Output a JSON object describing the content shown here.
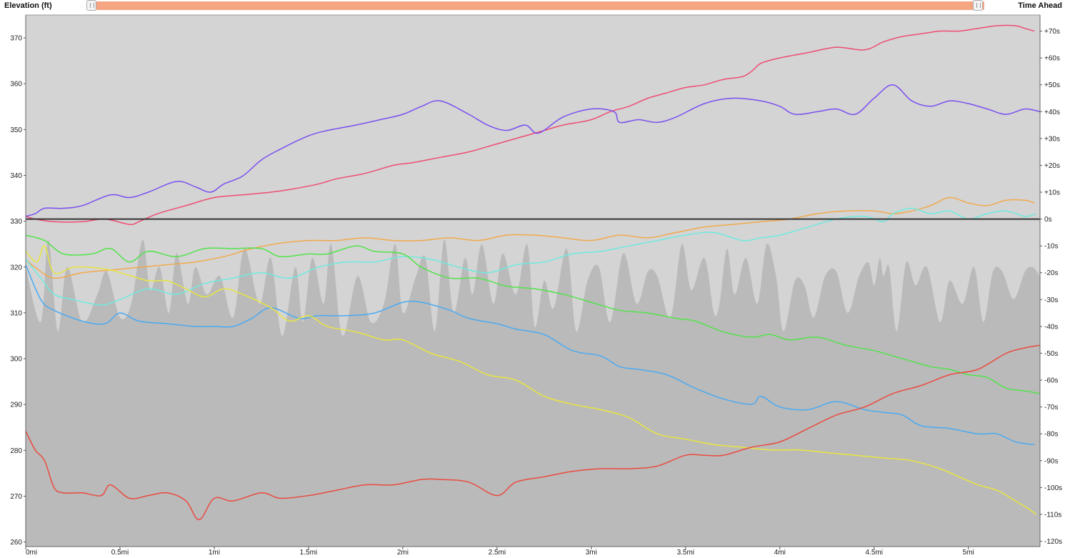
{
  "header": {
    "left_title": "Elevation (ft)",
    "right_title": "Time Ahead"
  },
  "slider": {
    "range": [
      0,
      1
    ]
  },
  "colors": {
    "plot_background": "#d4d4d4",
    "elevation_fill": "#bababa",
    "zero_line": "#333333",
    "series": [
      "#ee4d72",
      "#7a4ff0",
      "#f2a94c",
      "#6eeadf",
      "#52e34a",
      "#4aaaf2",
      "#e8e63e",
      "#ea4a3e"
    ]
  },
  "chart_data": {
    "type": "line",
    "xlim": [
      0,
      5.38
    ],
    "ylim_left": [
      259,
      375
    ],
    "ylim_right": [
      -122,
      76
    ],
    "x_ticks": [
      {
        "v": 0,
        "label": "0mi"
      },
      {
        "v": 0.5,
        "label": "0.5mi"
      },
      {
        "v": 1,
        "label": "1mi"
      },
      {
        "v": 1.5,
        "label": "1.5mi"
      },
      {
        "v": 2,
        "label": "2mi"
      },
      {
        "v": 2.5,
        "label": "2.5mi"
      },
      {
        "v": 3,
        "label": "3mi"
      },
      {
        "v": 3.5,
        "label": "3.5mi"
      },
      {
        "v": 4,
        "label": "4mi"
      },
      {
        "v": 4.5,
        "label": "4.5mi"
      },
      {
        "v": 5,
        "label": "5mi"
      }
    ],
    "left_ticks": [
      {
        "v": 260,
        "label": "260"
      },
      {
        "v": 270,
        "label": "270"
      },
      {
        "v": 280,
        "label": "280"
      },
      {
        "v": 290,
        "label": "290"
      },
      {
        "v": 300,
        "label": "300"
      },
      {
        "v": 310,
        "label": "310"
      },
      {
        "v": 320,
        "label": "320"
      },
      {
        "v": 330,
        "label": "330"
      },
      {
        "v": 340,
        "label": "340"
      },
      {
        "v": 350,
        "label": "350"
      },
      {
        "v": 360,
        "label": "360"
      },
      {
        "v": 370,
        "label": "370"
      }
    ],
    "right_ticks": [
      {
        "v": -120,
        "label": "-120s"
      },
      {
        "v": -110,
        "label": "-110s"
      },
      {
        "v": -100,
        "label": "-100s"
      },
      {
        "v": -90,
        "label": "-90s"
      },
      {
        "v": -80,
        "label": "-80s"
      },
      {
        "v": -70,
        "label": "-70s"
      },
      {
        "v": -60,
        "label": "-60s"
      },
      {
        "v": -50,
        "label": "-50s"
      },
      {
        "v": -40,
        "label": "-40s"
      },
      {
        "v": -30,
        "label": "-30s"
      },
      {
        "v": -20,
        "label": "-20s"
      },
      {
        "v": -10,
        "label": "-10s"
      },
      {
        "v": 0,
        "label": "0s"
      },
      {
        "v": 10,
        "label": "+10s"
      },
      {
        "v": 20,
        "label": "+20s"
      },
      {
        "v": 30,
        "label": "+30s"
      },
      {
        "v": 40,
        "label": "+40s"
      },
      {
        "v": 50,
        "label": "+50s"
      },
      {
        "v": 60,
        "label": "+60s"
      },
      {
        "v": 70,
        "label": "+70s"
      }
    ],
    "elevation": {
      "x": [
        0,
        0.08,
        0.12,
        0.17,
        0.22,
        0.3,
        0.38,
        0.43,
        0.5,
        0.56,
        0.62,
        0.66,
        0.71,
        0.76,
        0.8,
        0.86,
        0.9,
        0.96,
        1.03,
        1.1,
        1.16,
        1.24,
        1.3,
        1.36,
        1.43,
        1.47,
        1.52,
        1.58,
        1.62,
        1.68,
        1.76,
        1.83,
        1.9,
        1.96,
        2.0,
        2.07,
        2.12,
        2.17,
        2.22,
        2.27,
        2.33,
        2.37,
        2.42,
        2.48,
        2.53,
        2.6,
        2.66,
        2.7,
        2.75,
        2.8,
        2.87,
        2.92,
        2.98,
        3.04,
        3.1,
        3.17,
        3.24,
        3.3,
        3.35,
        3.42,
        3.48,
        3.53,
        3.6,
        3.65,
        3.68,
        3.72,
        3.76,
        3.82,
        3.88,
        3.93,
        3.98,
        4.02,
        4.08,
        4.13,
        4.18,
        4.24,
        4.3,
        4.36,
        4.42,
        4.47,
        4.5,
        4.53,
        4.55,
        4.58,
        4.62,
        4.67,
        4.72,
        4.78,
        4.85,
        4.9,
        4.97,
        5.03,
        5.08,
        5.13,
        5.18,
        5.24,
        5.3,
        5.34,
        5.38
      ],
      "y": [
        320,
        308,
        326,
        306,
        320,
        308,
        314,
        319,
        309,
        312,
        326,
        315,
        320,
        310,
        323,
        312,
        320,
        314,
        318,
        309,
        324,
        312,
        322,
        305,
        320,
        308,
        322,
        312,
        325,
        305,
        318,
        308,
        312,
        325,
        310,
        318,
        322,
        306,
        326,
        310,
        322,
        314,
        325,
        312,
        323,
        314,
        325,
        307,
        317,
        311,
        324,
        306,
        317,
        320,
        308,
        323,
        312,
        319,
        318,
        309,
        325,
        315,
        322,
        310,
        312,
        324,
        314,
        322,
        312,
        325,
        318,
        306,
        317,
        316,
        309,
        318,
        319,
        310,
        318,
        321,
        316,
        322,
        318,
        320,
        306,
        321,
        316,
        320,
        308,
        317,
        312,
        320,
        308,
        319,
        319,
        313,
        319,
        320,
        318
      ]
    },
    "series": [
      {
        "color": "#ee4d72",
        "x": [
          0,
          0.05,
          0.15,
          0.3,
          0.42,
          0.55,
          0.6,
          0.7,
          0.85,
          1.0,
          1.15,
          1.3,
          1.4,
          1.55,
          1.65,
          1.8,
          1.95,
          2.05,
          2.2,
          2.35,
          2.5,
          2.65,
          2.75,
          2.85,
          3.0,
          3.1,
          3.2,
          3.3,
          3.4,
          3.5,
          3.6,
          3.7,
          3.8,
          3.85,
          3.9,
          4.0,
          4.15,
          4.3,
          4.45,
          4.55,
          4.65,
          4.75,
          4.85,
          4.95,
          5.05,
          5.15,
          5.25,
          5.3,
          5.35
        ],
        "y": [
          1,
          0,
          -1,
          -1,
          0,
          -2,
          -1,
          2,
          5,
          8,
          9,
          10,
          11,
          13,
          15,
          17,
          20,
          21,
          23,
          25,
          28,
          31,
          33,
          35,
          37,
          40,
          42,
          45,
          47,
          49,
          50,
          52,
          53,
          55,
          58,
          60,
          62,
          64,
          63,
          66,
          68,
          69,
          70,
          70,
          71,
          72,
          72,
          71,
          70
        ]
      },
      {
        "color": "#7a4ff0",
        "x": [
          0,
          0.05,
          0.1,
          0.2,
          0.3,
          0.45,
          0.55,
          0.65,
          0.8,
          0.9,
          0.98,
          1.05,
          1.15,
          1.25,
          1.35,
          1.5,
          1.6,
          1.75,
          1.88,
          2.0,
          2.1,
          2.2,
          2.35,
          2.45,
          2.55,
          2.65,
          2.72,
          2.85,
          3.0,
          3.12,
          3.15,
          3.25,
          3.35,
          3.45,
          3.6,
          3.75,
          3.9,
          4.0,
          4.08,
          4.2,
          4.3,
          4.4,
          4.5,
          4.6,
          4.7,
          4.8,
          4.9,
          5.0,
          5.1,
          5.2,
          5.3,
          5.38
        ],
        "y": [
          1,
          2,
          4,
          4,
          5,
          9,
          8,
          10,
          14,
          12,
          10,
          13,
          16,
          22,
          26,
          31,
          33,
          35,
          37,
          39,
          42,
          44,
          39,
          35,
          33,
          35,
          32,
          38,
          41,
          40,
          36,
          37,
          36,
          38,
          43,
          45,
          44,
          42,
          39,
          40,
          41,
          39,
          45,
          50,
          44,
          42,
          44,
          43,
          41,
          39,
          41,
          40
        ]
      },
      {
        "color": "#f2a94c",
        "x": [
          0,
          0.05,
          0.15,
          0.3,
          0.45,
          0.6,
          0.75,
          0.9,
          1.05,
          1.2,
          1.35,
          1.5,
          1.65,
          1.8,
          1.95,
          2.1,
          2.25,
          2.4,
          2.55,
          2.7,
          2.85,
          3.0,
          3.15,
          3.3,
          3.45,
          3.6,
          3.75,
          3.9,
          4.05,
          4.2,
          4.35,
          4.5,
          4.6,
          4.7,
          4.8,
          4.9,
          5.0,
          5.1,
          5.2,
          5.3,
          5.35
        ],
        "y": [
          -15,
          -18,
          -22,
          -20,
          -19,
          -18,
          -17,
          -16,
          -14,
          -11,
          -9,
          -8,
          -8,
          -7,
          -8,
          -8,
          -7,
          -8,
          -6,
          -6,
          -7,
          -8,
          -6,
          -7,
          -5,
          -3,
          -2,
          -1,
          0,
          2,
          3,
          3,
          2,
          3,
          5,
          8,
          6,
          5,
          7,
          7,
          6
        ]
      },
      {
        "color": "#6eeadf",
        "x": [
          0,
          0.08,
          0.15,
          0.25,
          0.4,
          0.5,
          0.65,
          0.8,
          0.95,
          1.1,
          1.25,
          1.4,
          1.55,
          1.7,
          1.85,
          2.0,
          2.15,
          2.3,
          2.45,
          2.6,
          2.75,
          2.9,
          3.05,
          3.2,
          3.35,
          3.5,
          3.65,
          3.8,
          3.9,
          4.0,
          4.15,
          4.3,
          4.45,
          4.55,
          4.6,
          4.7,
          4.8,
          4.9,
          5.0,
          5.1,
          5.2,
          5.3,
          5.36
        ],
        "y": [
          -15,
          -22,
          -28,
          -30,
          -32,
          -30,
          -26,
          -28,
          -24,
          -22,
          -20,
          -22,
          -18,
          -16,
          -16,
          -14,
          -15,
          -18,
          -20,
          -17,
          -16,
          -13,
          -12,
          -10,
          -8,
          -6,
          -5,
          -8,
          -7,
          -6,
          -3,
          0,
          1,
          -1,
          2,
          4,
          2,
          3,
          0,
          2,
          3,
          1,
          2
        ]
      },
      {
        "color": "#52e34a",
        "x": [
          0,
          0.1,
          0.2,
          0.35,
          0.45,
          0.55,
          0.65,
          0.8,
          0.95,
          1.1,
          1.25,
          1.35,
          1.5,
          1.6,
          1.75,
          1.85,
          2.0,
          2.1,
          2.25,
          2.4,
          2.55,
          2.7,
          2.85,
          3.0,
          3.15,
          3.3,
          3.45,
          3.55,
          3.7,
          3.85,
          3.95,
          4.05,
          4.2,
          4.35,
          4.5,
          4.6,
          4.7,
          4.8,
          4.9,
          5.0,
          5.1,
          5.2,
          5.3,
          5.38
        ],
        "y": [
          -6,
          -8,
          -13,
          -13,
          -11,
          -16,
          -12,
          -14,
          -11,
          -11,
          -11,
          -14,
          -13,
          -13,
          -10,
          -12,
          -13,
          -18,
          -22,
          -22,
          -25,
          -26,
          -28,
          -31,
          -34,
          -35,
          -37,
          -38,
          -42,
          -44,
          -43,
          -45,
          -44,
          -47,
          -49,
          -51,
          -53,
          -55,
          -56,
          -58,
          -59,
          -63,
          -64,
          -65
        ]
      },
      {
        "color": "#4aaaf2",
        "x": [
          0,
          0.08,
          0.15,
          0.3,
          0.42,
          0.5,
          0.6,
          0.75,
          0.9,
          1.0,
          1.1,
          1.2,
          1.3,
          1.45,
          1.55,
          1.7,
          1.85,
          2.0,
          2.1,
          2.25,
          2.35,
          2.5,
          2.6,
          2.75,
          2.9,
          3.05,
          3.15,
          3.25,
          3.4,
          3.55,
          3.7,
          3.85,
          3.9,
          4.0,
          4.15,
          4.3,
          4.45,
          4.55,
          4.65,
          4.75,
          4.9,
          5.05,
          5.15,
          5.25,
          5.35
        ],
        "y": [
          -17,
          -30,
          -34,
          -38,
          -39,
          -35,
          -38,
          -39,
          -40,
          -40,
          -40,
          -37,
          -33,
          -37,
          -36,
          -36,
          -35,
          -31,
          -31,
          -34,
          -37,
          -39,
          -41,
          -43,
          -49,
          -51,
          -55,
          -56,
          -58,
          -63,
          -67,
          -69,
          -66,
          -70,
          -71,
          -68,
          -71,
          -72,
          -73,
          -77,
          -78,
          -80,
          -80,
          -83,
          -84
        ]
      },
      {
        "color": "#e8e63e",
        "x": [
          0,
          0.06,
          0.1,
          0.15,
          0.25,
          0.35,
          0.45,
          0.55,
          0.65,
          0.75,
          0.85,
          0.95,
          1.05,
          1.15,
          1.3,
          1.4,
          1.5,
          1.6,
          1.75,
          1.9,
          2.0,
          2.15,
          2.3,
          2.45,
          2.6,
          2.75,
          2.9,
          3.05,
          3.2,
          3.35,
          3.5,
          3.65,
          3.8,
          3.95,
          4.1,
          4.25,
          4.4,
          4.55,
          4.7,
          4.85,
          4.95,
          5.05,
          5.15,
          5.25,
          5.32,
          5.36
        ],
        "y": [
          -12,
          -16,
          -10,
          -20,
          -18,
          -18,
          -19,
          -21,
          -23,
          -23,
          -26,
          -29,
          -26,
          -28,
          -33,
          -38,
          -36,
          -40,
          -42,
          -45,
          -45,
          -50,
          -53,
          -58,
          -60,
          -66,
          -69,
          -71,
          -74,
          -80,
          -82,
          -84,
          -85,
          -86,
          -86,
          -87,
          -88,
          -89,
          -90,
          -93,
          -96,
          -99,
          -101,
          -105,
          -108,
          -110
        ]
      },
      {
        "color": "#ea4a3e",
        "x": [
          0,
          0.05,
          0.1,
          0.15,
          0.2,
          0.3,
          0.4,
          0.45,
          0.55,
          0.65,
          0.75,
          0.85,
          0.92,
          1.0,
          1.1,
          1.25,
          1.35,
          1.5,
          1.65,
          1.8,
          1.95,
          2.1,
          2.2,
          2.35,
          2.5,
          2.6,
          2.75,
          2.9,
          3.05,
          3.2,
          3.35,
          3.5,
          3.6,
          3.7,
          3.85,
          4.0,
          4.15,
          4.3,
          4.45,
          4.6,
          4.75,
          4.9,
          5.05,
          5.2,
          5.3,
          5.38
        ],
        "y": [
          -79,
          -86,
          -90,
          -100,
          -102,
          -102,
          -103,
          -99,
          -104,
          -103,
          -102,
          -105,
          -112,
          -104,
          -105,
          -102,
          -104,
          -103,
          -101,
          -99,
          -99,
          -97,
          -97,
          -98,
          -103,
          -98,
          -96,
          -94,
          -93,
          -93,
          -92,
          -88,
          -88,
          -88,
          -85,
          -83,
          -78,
          -73,
          -70,
          -65,
          -62,
          -58,
          -56,
          -50,
          -48,
          -47
        ]
      }
    ]
  }
}
